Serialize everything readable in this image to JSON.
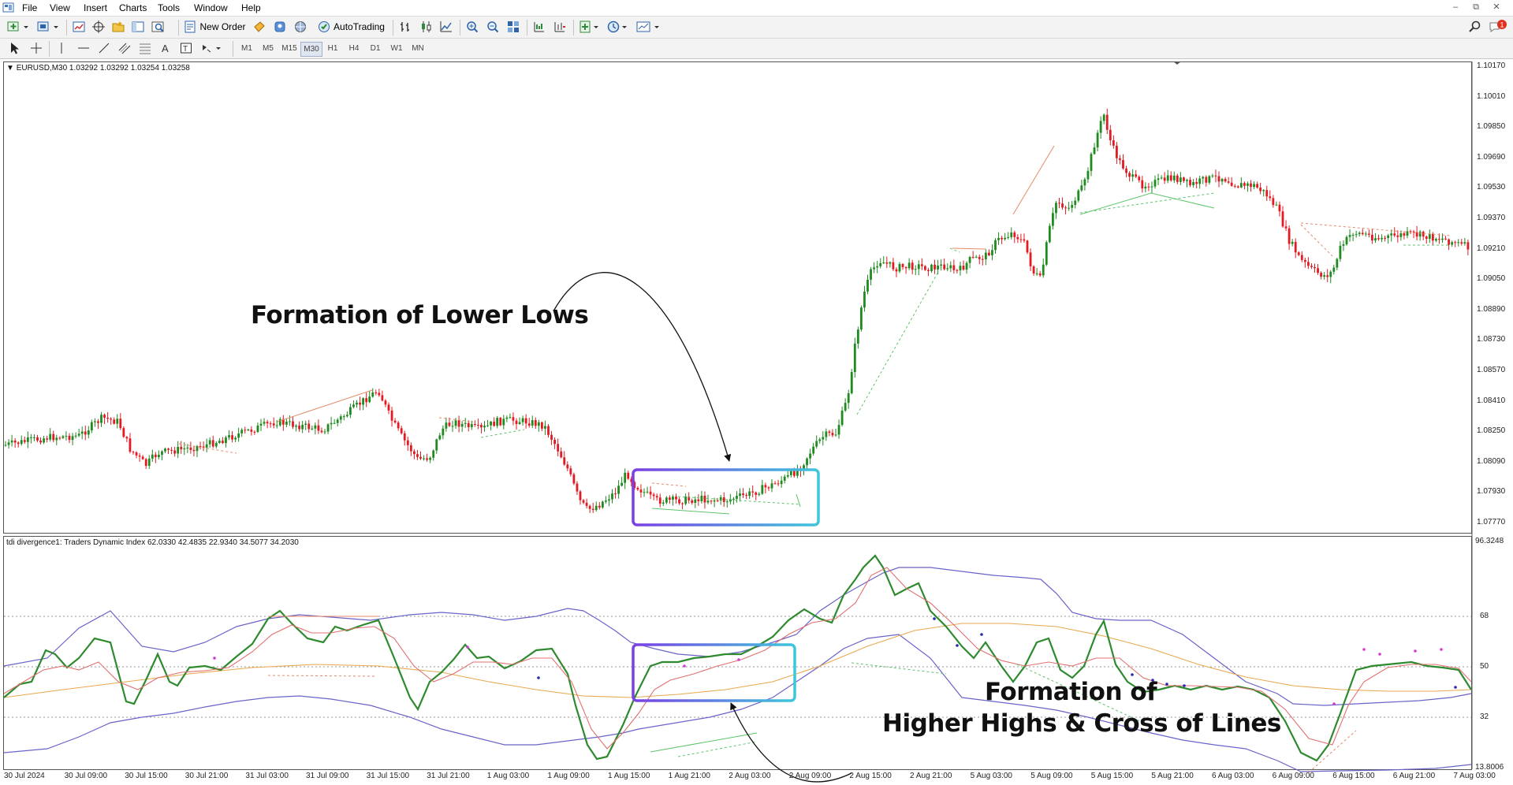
{
  "menu": {
    "items": [
      "File",
      "View",
      "Insert",
      "Charts",
      "Tools",
      "Window",
      "Help"
    ]
  },
  "toolbar": {
    "new_order_label": "New Order",
    "autotrading_label": "AutoTrading",
    "timeframes": [
      "M1",
      "M5",
      "M15",
      "M30",
      "H1",
      "H4",
      "D1",
      "W1",
      "MN"
    ],
    "active_timeframe": "M30",
    "alert_badge": "1"
  },
  "main_chart": {
    "info": "EURUSD,M30  1.03292 1.03292 1.03254 1.03258",
    "price_scale": [
      "1.10170",
      "1.10010",
      "1.09850",
      "1.09690",
      "1.09530",
      "1.09370",
      "1.09210",
      "1.09050",
      "1.08890",
      "1.08730",
      "1.08570",
      "1.08410",
      "1.08250",
      "1.08090",
      "1.07930",
      "1.07770"
    ],
    "bull_color": "#1f8a1f",
    "bear_color": "#e01b24"
  },
  "indicator": {
    "info": "tdi divergence1: Traders Dynamic Index 62.0330 42.4835 22.9340 34.5077 34.2030",
    "scale": [
      "96.3248",
      "68",
      "50",
      "32",
      "13.8006"
    ],
    "levels": [
      68,
      50,
      32
    ]
  },
  "time_axis": [
    "30 Jul 2024",
    "30 Jul 09:00",
    "30 Jul 15:00",
    "30 Jul 21:00",
    "31 Jul 03:00",
    "31 Jul 09:00",
    "31 Jul 15:00",
    "31 Jul 21:00",
    "1 Aug 03:00",
    "1 Aug 09:00",
    "1 Aug 15:00",
    "1 Aug 21:00",
    "2 Aug 03:00",
    "2 Aug 09:00",
    "2 Aug 15:00",
    "2 Aug 21:00",
    "5 Aug 03:00",
    "5 Aug 09:00",
    "5 Aug 15:00",
    "5 Aug 21:00",
    "6 Aug 03:00",
    "6 Aug 09:00",
    "6 Aug 15:00",
    "6 Aug 21:00",
    "7 Aug 03:00"
  ],
  "annotations": {
    "lower_lows": "Formation of Lower Lows",
    "higher_highs_line1": "Formation of",
    "higher_highs_line2": "Higher Highs & Cross of Lines"
  },
  "highlight_gradient": {
    "start": "#7b3fe4",
    "end": "#3ec6dc"
  }
}
